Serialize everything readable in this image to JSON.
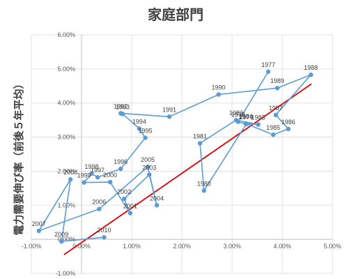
{
  "chart_data": {
    "type": "scatter",
    "title": "家庭部門",
    "ylabel": "電力需要伸び率（前後５年平均）",
    "xlim": [
      -0.01,
      0.05
    ],
    "ylim": [
      -0.01,
      0.06
    ],
    "x_ticks": [
      "-1.00%",
      "0.00%",
      "1.00%",
      "2.00%",
      "3.00%",
      "4.00%",
      "5.00%"
    ],
    "y_ticks": [
      "-1.00%",
      "0.00%",
      "1.00%",
      "2.00%",
      "3.00%",
      "4.00%",
      "5.00%",
      "6.00%"
    ],
    "grid": true,
    "colors": {
      "series": "#5b9bd5",
      "trend": "#e00000",
      "grid": "#d9d9d9"
    },
    "series": [
      {
        "points": [
          {
            "label": "1977",
            "x": 0.0372,
            "y": 0.0492
          },
          {
            "label": "1978",
            "x": 0.0312,
            "y": 0.0345
          },
          {
            "label": "1979",
            "x": 0.0328,
            "y": 0.0338
          },
          {
            "label": "1980",
            "x": 0.0244,
            "y": 0.0143
          },
          {
            "label": "1981",
            "x": 0.0236,
            "y": 0.0282
          },
          {
            "label": "1982",
            "x": 0.0308,
            "y": 0.035
          },
          {
            "label": "1983",
            "x": 0.0352,
            "y": 0.0337
          },
          {
            "label": "1984",
            "x": 0.0327,
            "y": 0.034
          },
          {
            "label": "1985",
            "x": 0.0382,
            "y": 0.0307
          },
          {
            "label": "1986",
            "x": 0.0412,
            "y": 0.0324
          },
          {
            "label": "1987",
            "x": 0.0387,
            "y": 0.0365
          },
          {
            "label": "1988",
            "x": 0.0457,
            "y": 0.0483
          },
          {
            "label": "1989",
            "x": 0.039,
            "y": 0.0444
          },
          {
            "label": "1990",
            "x": 0.0273,
            "y": 0.0425
          },
          {
            "label": "1991",
            "x": 0.0175,
            "y": 0.036
          },
          {
            "label": "1992",
            "x": 0.0078,
            "y": 0.037
          },
          {
            "label": "1993",
            "x": 0.0082,
            "y": 0.0368
          },
          {
            "label": "1994",
            "x": 0.0115,
            "y": 0.0325
          },
          {
            "label": "1995",
            "x": 0.0127,
            "y": 0.0298
          },
          {
            "label": "1996",
            "x": 0.0078,
            "y": 0.0207
          },
          {
            "label": "1997",
            "x": 0.0032,
            "y": 0.0182
          },
          {
            "label": "1998",
            "x": 0.002,
            "y": 0.0193
          },
          {
            "label": "1999",
            "x": 0.0005,
            "y": 0.0167
          },
          {
            "label": "2000",
            "x": 0.0057,
            "y": 0.0168
          },
          {
            "label": "2001",
            "x": 0.0097,
            "y": 0.0077
          },
          {
            "label": "2002",
            "x": 0.0085,
            "y": 0.0119
          },
          {
            "label": "2003",
            "x": 0.0135,
            "y": 0.019
          },
          {
            "label": "2004",
            "x": 0.015,
            "y": 0.01
          },
          {
            "label": "2005",
            "x": 0.0132,
            "y": 0.0213
          },
          {
            "label": "2006",
            "x": 0.0035,
            "y": 0.0089
          },
          {
            "label": "2007",
            "x": -0.0085,
            "y": 0.0025
          },
          {
            "label": "2008",
            "x": -0.0022,
            "y": 0.0176
          },
          {
            "label": "2009",
            "x": -0.004,
            "y": -0.0006
          },
          {
            "label": "2010",
            "x": 0.0045,
            "y": 0.0006
          }
        ]
      }
    ],
    "trendline": {
      "x": [
        -0.0035,
        0.0458
      ],
      "y": [
        -0.0045,
        0.0456
      ]
    }
  }
}
